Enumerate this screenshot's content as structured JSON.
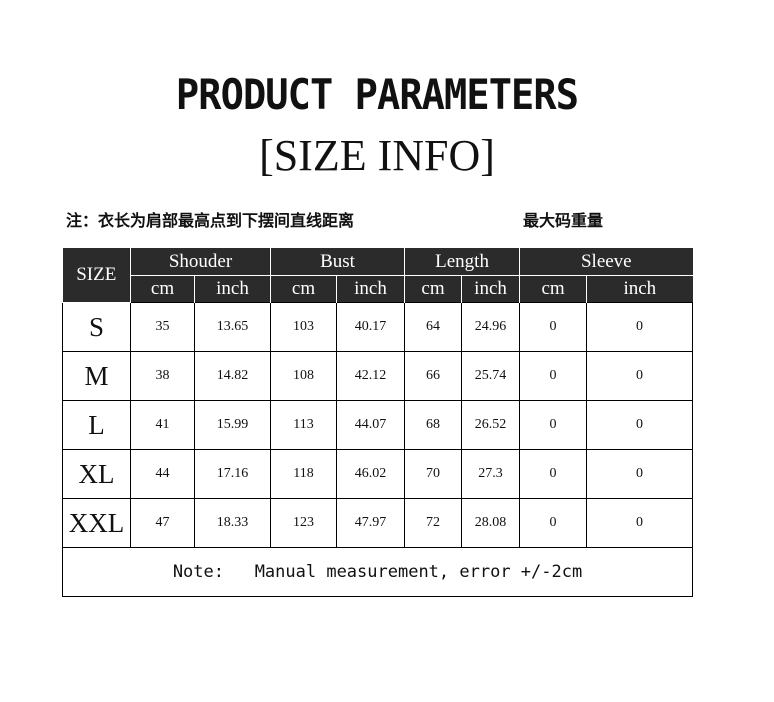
{
  "title": "PRODUCT PARAMETERS",
  "subtitle": "[SIZE INFO]",
  "note_cn": "注：衣长为肩部最高点到下摆间直线距离",
  "note_cn_right": "最大码重量",
  "table": {
    "size_header": "SIZE",
    "groups": [
      "Shouder",
      "Bust",
      "Length",
      "Sleeve"
    ],
    "units": [
      "cm",
      "inch",
      "cm",
      "inch",
      "cm",
      "inch",
      "cm",
      "inch"
    ],
    "rows": [
      {
        "size": "S",
        "values": [
          "35",
          "13.65",
          "103",
          "40.17",
          "64",
          "24.96",
          "0",
          "0"
        ]
      },
      {
        "size": "M",
        "values": [
          "38",
          "14.82",
          "108",
          "42.12",
          "66",
          "25.74",
          "0",
          "0"
        ]
      },
      {
        "size": "L",
        "values": [
          "41",
          "15.99",
          "113",
          "44.07",
          "68",
          "26.52",
          "0",
          "0"
        ]
      },
      {
        "size": "XL",
        "values": [
          "44",
          "17.16",
          "118",
          "46.02",
          "70",
          "27.3",
          "0",
          "0"
        ]
      },
      {
        "size": "XXL",
        "values": [
          "47",
          "18.33",
          "123",
          "47.97",
          "72",
          "28.08",
          "0",
          "0"
        ]
      }
    ],
    "note": "Note:   Manual measurement, error +/-2cm"
  }
}
